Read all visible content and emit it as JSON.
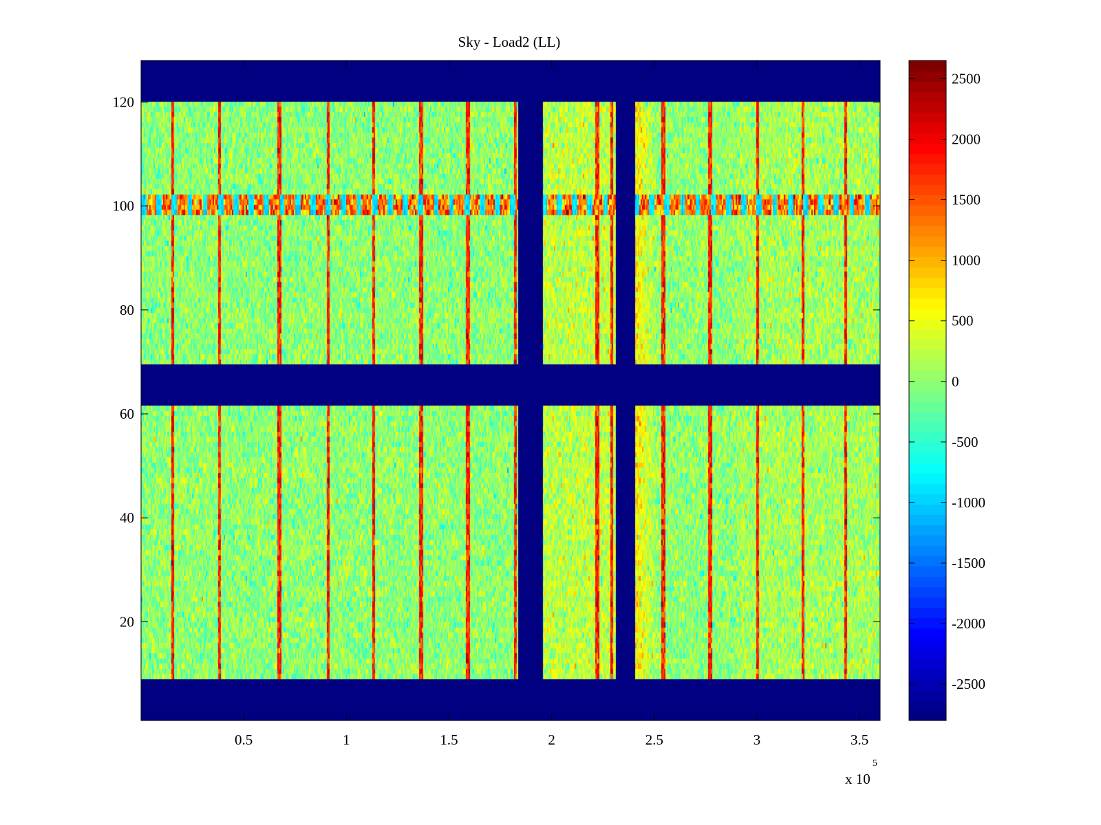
{
  "chart_data": {
    "type": "heatmap",
    "title": "Sky - Load2 (LL)",
    "xlabel": "",
    "ylabel": "",
    "x_exponent_label": "x 10",
    "x_exponent_power": "5",
    "xlim": [
      0,
      3.6
    ],
    "ylim": [
      1,
      128
    ],
    "x_ticks": [
      0.5,
      1,
      1.5,
      2,
      2.5,
      3,
      3.5
    ],
    "x_tick_labels": [
      "0.5",
      "1",
      "1.5",
      "2",
      "2.5",
      "3",
      "3.5"
    ],
    "y_ticks": [
      20,
      40,
      60,
      80,
      100,
      120
    ],
    "y_tick_labels": [
      "20",
      "40",
      "60",
      "80",
      "100",
      "120"
    ],
    "colorbar": {
      "colormap": "jet",
      "clim": [
        -2800,
        2650
      ],
      "ticks": [
        -2500,
        -2000,
        -1500,
        -1000,
        -500,
        0,
        500,
        1000,
        1500,
        2000,
        2500
      ],
      "tick_labels": [
        "-2500",
        "-2000",
        "-1500",
        "-1000",
        "-500",
        "0",
        "500",
        "1000",
        "1500",
        "2000",
        "2500"
      ]
    },
    "background_value": -2800,
    "noise_mean": 0,
    "noise_std": 280,
    "masked_row_ranges": [
      [
        1,
        8
      ],
      [
        62,
        69
      ],
      [
        121,
        128
      ]
    ],
    "masked_column_ranges": [
      [
        1.84,
        1.96
      ],
      [
        2.31,
        2.41
      ]
    ],
    "red_line_x": [
      0.15,
      0.38,
      0.67,
      0.91,
      1.13,
      1.36,
      1.59,
      1.82,
      2.22,
      2.29,
      2.54,
      2.77,
      3.0,
      3.22,
      3.43
    ],
    "high_row_band": [
      99,
      102
    ],
    "high_row_value": 1300
  }
}
